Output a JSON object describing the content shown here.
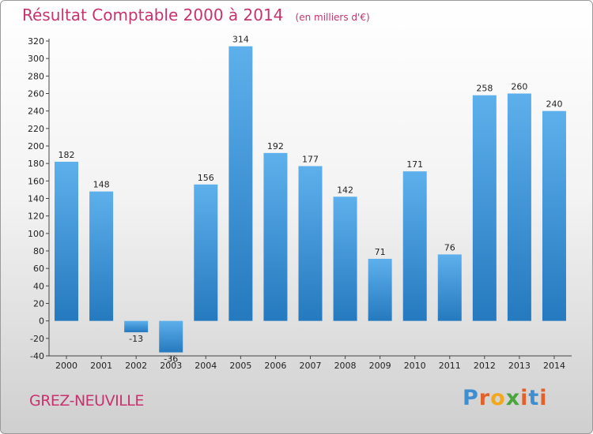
{
  "header": {
    "title": "Résultat Comptable 2000 à 2014",
    "subtitle": "(en milliers d'€)"
  },
  "footer": {
    "commune": "GREZ-NEUVILLE",
    "logo": [
      "P",
      "r",
      "o",
      "x",
      "i",
      "t",
      "i"
    ]
  },
  "colors": {
    "title": "#c8326e",
    "bar_light": "#5eb0ec",
    "bar_dark": "#2579be",
    "logo": [
      "#3d8fd1",
      "#e2612a",
      "#f2a81d",
      "#4aa53a",
      "#e2612a",
      "#3d8fd1",
      "#e2612a"
    ]
  },
  "chart_data": {
    "type": "bar",
    "title": "Résultat Comptable 2000 à 2014",
    "xlabel": "",
    "ylabel": "",
    "ylim": [
      -40,
      320
    ],
    "yticks": [
      -40,
      -20,
      0,
      20,
      40,
      60,
      80,
      100,
      120,
      140,
      160,
      180,
      200,
      220,
      240,
      260,
      280,
      300,
      320
    ],
    "grid": false,
    "categories": [
      "2000",
      "2001",
      "2002",
      "2003",
      "2004",
      "2005",
      "2006",
      "2007",
      "2008",
      "2009",
      "2010",
      "2011",
      "2012",
      "2013",
      "2014"
    ],
    "values": [
      182,
      148,
      -13,
      -36,
      156,
      314,
      192,
      177,
      142,
      71,
      171,
      76,
      258,
      260,
      240
    ]
  }
}
